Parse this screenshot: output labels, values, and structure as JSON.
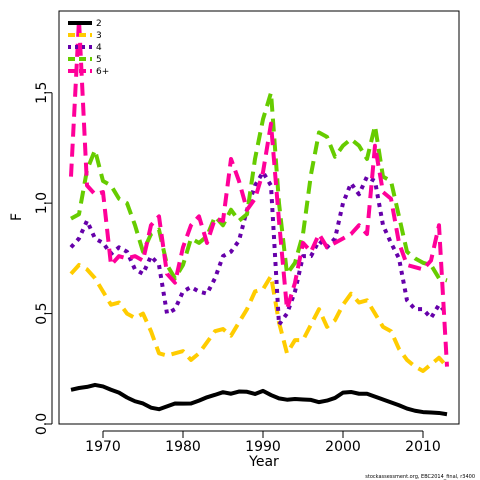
{
  "chart_data": {
    "type": "line",
    "xlabel": "Year",
    "ylabel": "F",
    "xlim": [
      1964.5,
      2014.5
    ],
    "ylim": [
      0,
      1.87
    ],
    "x_ticks": [
      1970,
      1980,
      1990,
      2000,
      2010
    ],
    "y_ticks": [
      0.0,
      0.5,
      1.0,
      1.5
    ],
    "y_tick_labels": [
      "0.0",
      "0.5",
      "1.0",
      "1.5"
    ],
    "grid": false,
    "legend_placement": "top-left",
    "caption": "stockassessment.org, EBC2014_final, r3400",
    "series": [
      {
        "name": "2",
        "color": "#000000",
        "dash": "solid",
        "x": [
          1966,
          1967,
          1968,
          1969,
          1970,
          1971,
          1972,
          1973,
          1974,
          1975,
          1976,
          1977,
          1978,
          1979,
          1980,
          1981,
          1982,
          1983,
          1984,
          1985,
          1986,
          1987,
          1988,
          1989,
          1990,
          1991,
          1992,
          1993,
          1994,
          1995,
          1996,
          1997,
          1998,
          1999,
          2000,
          2001,
          2002,
          2003,
          2004,
          2005,
          2006,
          2007,
          2008,
          2009,
          2010,
          2011,
          2012,
          2013
        ],
        "values": [
          0.155,
          0.163,
          0.168,
          0.177,
          0.17,
          0.155,
          0.142,
          0.12,
          0.103,
          0.093,
          0.074,
          0.067,
          0.08,
          0.093,
          0.092,
          0.093,
          0.106,
          0.121,
          0.132,
          0.144,
          0.137,
          0.147,
          0.146,
          0.136,
          0.15,
          0.131,
          0.116,
          0.11,
          0.113,
          0.111,
          0.109,
          0.099,
          0.106,
          0.118,
          0.142,
          0.145,
          0.137,
          0.137,
          0.124,
          0.111,
          0.098,
          0.085,
          0.07,
          0.06,
          0.054,
          0.052,
          0.05,
          0.044
        ]
      },
      {
        "name": "3",
        "color": "#ffcc00",
        "dash": "dashed",
        "x": [
          1966,
          1967,
          1968,
          1969,
          1970,
          1971,
          1972,
          1973,
          1974,
          1975,
          1976,
          1977,
          1978,
          1979,
          1980,
          1981,
          1982,
          1983,
          1984,
          1985,
          1986,
          1987,
          1988,
          1989,
          1990,
          1991,
          1992,
          1993,
          1994,
          1995,
          1996,
          1997,
          1998,
          1999,
          2000,
          2001,
          2002,
          2003,
          2004,
          2005,
          2006,
          2007,
          2008,
          2009,
          2010,
          2011,
          2012,
          2013
        ],
        "values": [
          0.68,
          0.72,
          0.7,
          0.66,
          0.6,
          0.54,
          0.55,
          0.5,
          0.48,
          0.5,
          0.42,
          0.32,
          0.31,
          0.32,
          0.33,
          0.29,
          0.32,
          0.37,
          0.42,
          0.43,
          0.4,
          0.46,
          0.52,
          0.6,
          0.61,
          0.67,
          0.46,
          0.32,
          0.38,
          0.38,
          0.45,
          0.52,
          0.44,
          0.47,
          0.54,
          0.59,
          0.55,
          0.56,
          0.5,
          0.44,
          0.42,
          0.34,
          0.29,
          0.26,
          0.24,
          0.27,
          0.3,
          0.26
        ]
      },
      {
        "name": "4",
        "color": "#6600aa",
        "dash": "dotted",
        "x": [
          1966,
          1967,
          1968,
          1969,
          1970,
          1971,
          1972,
          1973,
          1974,
          1975,
          1976,
          1977,
          1978,
          1979,
          1980,
          1981,
          1982,
          1983,
          1984,
          1985,
          1986,
          1987,
          1988,
          1989,
          1990,
          1991,
          1992,
          1993,
          1994,
          1995,
          1996,
          1997,
          1998,
          1999,
          2000,
          2001,
          2002,
          2003,
          2004,
          2005,
          2006,
          2007,
          2008,
          2009,
          2010,
          2011,
          2012,
          2013
        ],
        "values": [
          0.8,
          0.84,
          0.92,
          0.84,
          0.82,
          0.77,
          0.8,
          0.78,
          0.7,
          0.68,
          0.76,
          0.72,
          0.5,
          0.52,
          0.6,
          0.62,
          0.6,
          0.59,
          0.66,
          0.76,
          0.78,
          0.83,
          0.97,
          1.08,
          1.14,
          1.08,
          0.45,
          0.5,
          0.6,
          0.76,
          0.76,
          0.83,
          0.8,
          0.84,
          1.0,
          1.09,
          1.04,
          1.12,
          1.1,
          0.9,
          0.82,
          0.75,
          0.56,
          0.52,
          0.52,
          0.48,
          0.54,
          0.5
        ]
      },
      {
        "name": "5",
        "color": "#66cc00",
        "dash": "dashed",
        "x": [
          1966,
          1967,
          1968,
          1969,
          1970,
          1971,
          1972,
          1973,
          1974,
          1975,
          1976,
          1977,
          1978,
          1979,
          1980,
          1981,
          1982,
          1983,
          1984,
          1985,
          1986,
          1987,
          1988,
          1989,
          1990,
          1991,
          1992,
          1993,
          1994,
          1995,
          1996,
          1997,
          1998,
          1999,
          2000,
          2001,
          2002,
          2003,
          2004,
          2005,
          2006,
          2007,
          2008,
          2009,
          2010,
          2011,
          2012,
          2013
        ],
        "values": [
          0.93,
          0.95,
          1.15,
          1.24,
          1.1,
          1.08,
          1.02,
          1.0,
          0.9,
          0.78,
          0.86,
          0.88,
          0.72,
          0.66,
          0.72,
          0.84,
          0.82,
          0.85,
          0.94,
          0.9,
          0.97,
          0.92,
          0.95,
          1.2,
          1.38,
          1.5,
          1.0,
          0.68,
          0.73,
          0.86,
          1.13,
          1.32,
          1.3,
          1.21,
          1.26,
          1.29,
          1.26,
          1.2,
          1.35,
          1.12,
          1.1,
          0.94,
          0.78,
          0.75,
          0.73,
          0.72,
          0.66,
          0.65
        ]
      },
      {
        "name": "6+",
        "color": "#ff0099",
        "dash": "dashed",
        "x": [
          1966,
          1967,
          1968,
          1969,
          1970,
          1971,
          1972,
          1973,
          1974,
          1975,
          1976,
          1977,
          1978,
          1979,
          1980,
          1981,
          1982,
          1983,
          1984,
          1985,
          1986,
          1987,
          1988,
          1989,
          1990,
          1991,
          1992,
          1993,
          1994,
          1995,
          1996,
          1997,
          1998,
          1999,
          2000,
          2001,
          2002,
          2003,
          2004,
          2005,
          2006,
          2007,
          2008,
          2009,
          2010,
          2011,
          2012,
          2013
        ],
        "values": [
          1.12,
          1.83,
          1.08,
          1.04,
          1.05,
          0.72,
          0.76,
          0.75,
          0.76,
          0.74,
          0.9,
          0.94,
          0.68,
          0.64,
          0.8,
          0.9,
          0.94,
          0.82,
          0.93,
          0.92,
          1.2,
          1.1,
          0.97,
          1.02,
          1.14,
          1.36,
          0.92,
          0.52,
          0.64,
          0.82,
          0.78,
          0.86,
          0.8,
          0.82,
          0.84,
          0.86,
          0.9,
          0.86,
          1.26,
          1.05,
          1.02,
          0.82,
          0.72,
          0.71,
          0.7,
          0.74,
          0.9,
          0.26
        ]
      }
    ]
  }
}
